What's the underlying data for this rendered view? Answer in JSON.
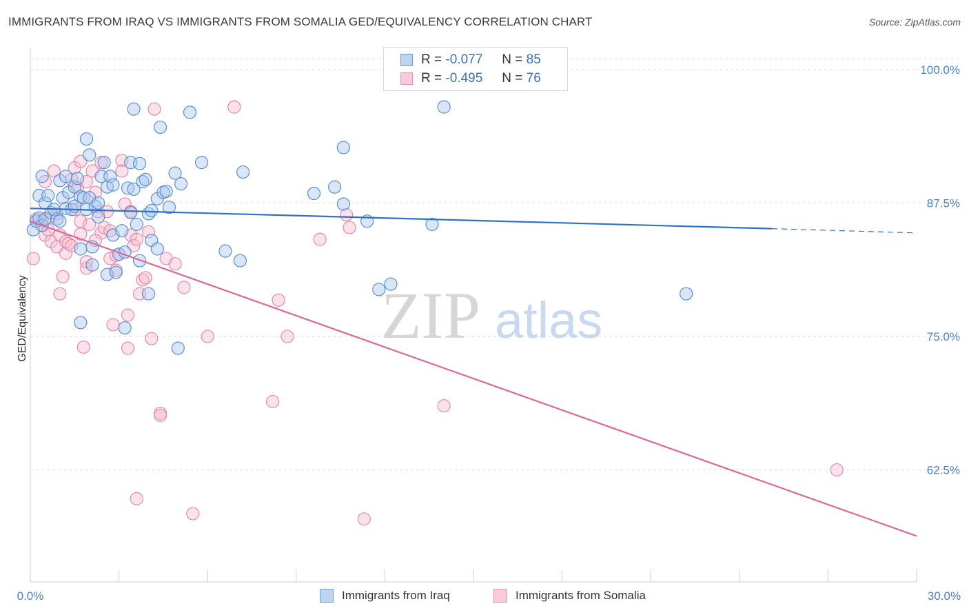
{
  "title": "IMMIGRANTS FROM IRAQ VS IMMIGRANTS FROM SOMALIA GED/EQUIVALENCY CORRELATION CHART",
  "source": "Source: ZipAtlas.com",
  "watermark": {
    "zip": "ZIP",
    "atlas": "atlas"
  },
  "legend": {
    "rows": [
      {
        "r_label": "R =",
        "r_value": "-0.077",
        "n_label": "N =",
        "n_value": "85"
      },
      {
        "r_label": "R =",
        "r_value": "-0.495",
        "n_label": "N =",
        "n_value": "76"
      }
    ]
  },
  "bottom_legend": [
    "Immigrants from Iraq",
    "Immigrants from Somalia"
  ],
  "colors": {
    "iraq_fill": "#a9c8ee",
    "iraq_stroke": "#5b8fd6",
    "iraq_line": "#2e6fcc",
    "somalia_fill": "#f6bcd0",
    "somalia_stroke": "#e98aab",
    "somalia_line": "#e0669a",
    "tick_text": "#4a7fd0",
    "grid": "#dddddd"
  },
  "chart_data": {
    "type": "scatter",
    "title": "IMMIGRANTS FROM IRAQ VS IMMIGRANTS FROM SOMALIA GED/EQUIVALENCY CORRELATION CHART",
    "xlabel": "",
    "ylabel": "GED/Equivalency",
    "xlim": [
      0,
      30
    ],
    "ylim": [
      52,
      102
    ],
    "x_tick_labels": [
      "0.0%",
      "30.0%"
    ],
    "y_ticks": [
      62.5,
      75.0,
      87.5,
      100.0
    ],
    "y_tick_labels": [
      "62.5%",
      "75.0%",
      "87.5%",
      "100.0%"
    ],
    "grid": true,
    "legend_position": "top-center",
    "series": [
      {
        "name": "Immigrants from Iraq",
        "r": -0.077,
        "n": 85,
        "trend": {
          "x0": 0,
          "y0": 87.0,
          "x1": 25.1,
          "y1": 85.1,
          "dash_to_x": 30,
          "dash_to_y": 84.7
        },
        "points": [
          [
            0.1,
            85.0
          ],
          [
            0.2,
            85.8
          ],
          [
            0.3,
            88.2
          ],
          [
            0.3,
            86.1
          ],
          [
            0.4,
            90.0
          ],
          [
            0.4,
            85.4
          ],
          [
            0.5,
            87.5
          ],
          [
            0.5,
            86.0
          ],
          [
            0.6,
            88.2
          ],
          [
            0.7,
            86.6
          ],
          [
            0.8,
            86.9
          ],
          [
            0.9,
            86.0
          ],
          [
            1.0,
            89.6
          ],
          [
            1.0,
            85.8
          ],
          [
            1.1,
            88.0
          ],
          [
            1.2,
            87.0
          ],
          [
            1.2,
            90.0
          ],
          [
            1.3,
            88.5
          ],
          [
            1.4,
            86.9
          ],
          [
            1.5,
            89.0
          ],
          [
            1.5,
            87.2
          ],
          [
            1.6,
            89.8
          ],
          [
            1.7,
            88.1
          ],
          [
            1.7,
            83.2
          ],
          [
            1.8,
            88.0
          ],
          [
            1.9,
            86.9
          ],
          [
            1.9,
            93.5
          ],
          [
            2.0,
            92.0
          ],
          [
            2.0,
            88.0
          ],
          [
            2.1,
            81.7
          ],
          [
            2.1,
            83.4
          ],
          [
            2.2,
            87.2
          ],
          [
            2.3,
            87.5
          ],
          [
            2.3,
            86.2
          ],
          [
            2.4,
            90.0
          ],
          [
            2.5,
            91.3
          ],
          [
            2.6,
            80.8
          ],
          [
            2.6,
            89.0
          ],
          [
            2.7,
            90.0
          ],
          [
            2.8,
            84.5
          ],
          [
            2.8,
            89.2
          ],
          [
            2.9,
            81.0
          ],
          [
            3.0,
            82.7
          ],
          [
            3.1,
            84.9
          ],
          [
            3.2,
            75.8
          ],
          [
            3.2,
            82.9
          ],
          [
            3.3,
            88.9
          ],
          [
            3.4,
            86.6
          ],
          [
            3.4,
            91.3
          ],
          [
            3.5,
            88.8
          ],
          [
            3.5,
            96.3
          ],
          [
            3.6,
            85.5
          ],
          [
            3.7,
            82.1
          ],
          [
            3.7,
            91.2
          ],
          [
            3.8,
            89.5
          ],
          [
            3.9,
            89.7
          ],
          [
            4.0,
            79.0
          ],
          [
            4.0,
            86.5
          ],
          [
            4.1,
            86.8
          ],
          [
            4.1,
            84.0
          ],
          [
            4.3,
            87.9
          ],
          [
            4.3,
            83.2
          ],
          [
            4.4,
            94.6
          ],
          [
            4.5,
            88.5
          ],
          [
            4.6,
            88.6
          ],
          [
            4.7,
            87.1
          ],
          [
            4.9,
            90.3
          ],
          [
            5.0,
            73.9
          ],
          [
            5.1,
            89.3
          ],
          [
            5.4,
            96.0
          ],
          [
            5.8,
            91.3
          ],
          [
            6.6,
            83.0
          ],
          [
            7.1,
            82.1
          ],
          [
            7.2,
            90.4
          ],
          [
            9.6,
            88.4
          ],
          [
            10.3,
            89.0
          ],
          [
            10.6,
            92.7
          ],
          [
            10.6,
            87.4
          ],
          [
            11.4,
            85.8
          ],
          [
            11.8,
            79.4
          ],
          [
            12.2,
            79.9
          ],
          [
            13.6,
            85.5
          ],
          [
            14.0,
            96.5
          ],
          [
            22.2,
            79.0
          ],
          [
            1.7,
            76.3
          ]
        ]
      },
      {
        "name": "Immigrants from Somalia",
        "r": -0.495,
        "n": 76,
        "trend": {
          "x0": 0,
          "y0": 85.8,
          "x1": 30,
          "y1": 56.3
        },
        "points": [
          [
            0.1,
            82.3
          ],
          [
            0.2,
            86.0
          ],
          [
            0.4,
            85.8
          ],
          [
            0.5,
            84.5
          ],
          [
            0.5,
            89.5
          ],
          [
            0.6,
            86.1
          ],
          [
            0.7,
            83.9
          ],
          [
            0.8,
            90.5
          ],
          [
            0.9,
            83.4
          ],
          [
            1.0,
            84.5
          ],
          [
            1.0,
            79.0
          ],
          [
            1.1,
            80.6
          ],
          [
            1.2,
            83.9
          ],
          [
            1.2,
            82.8
          ],
          [
            1.3,
            83.7
          ],
          [
            1.4,
            89.7
          ],
          [
            1.5,
            86.9
          ],
          [
            1.5,
            90.8
          ],
          [
            1.6,
            88.9
          ],
          [
            1.7,
            84.6
          ],
          [
            1.7,
            91.4
          ],
          [
            1.7,
            85.8
          ],
          [
            1.8,
            74.0
          ],
          [
            1.9,
            89.5
          ],
          [
            1.9,
            81.4
          ],
          [
            2.0,
            85.5
          ],
          [
            2.1,
            90.5
          ],
          [
            2.2,
            88.5
          ],
          [
            2.3,
            86.7
          ],
          [
            2.4,
            91.3
          ],
          [
            2.4,
            84.7
          ],
          [
            2.5,
            85.2
          ],
          [
            2.6,
            86.7
          ],
          [
            2.7,
            84.9
          ],
          [
            2.7,
            82.3
          ],
          [
            2.8,
            76.1
          ],
          [
            2.9,
            82.6
          ],
          [
            2.9,
            81.2
          ],
          [
            3.1,
            91.5
          ],
          [
            3.1,
            90.5
          ],
          [
            3.2,
            87.4
          ],
          [
            3.3,
            73.9
          ],
          [
            3.3,
            77.0
          ],
          [
            3.4,
            86.7
          ],
          [
            3.4,
            84.5
          ],
          [
            3.5,
            83.5
          ],
          [
            3.6,
            59.8
          ],
          [
            3.6,
            84.1
          ],
          [
            3.8,
            80.3
          ],
          [
            3.9,
            80.5
          ],
          [
            4.0,
            84.8
          ],
          [
            4.1,
            74.8
          ],
          [
            4.2,
            96.3
          ],
          [
            4.4,
            67.8
          ],
          [
            4.4,
            67.6
          ],
          [
            4.6,
            82.3
          ],
          [
            4.9,
            81.8
          ],
          [
            5.2,
            79.6
          ],
          [
            5.5,
            58.4
          ],
          [
            6.0,
            75.0
          ],
          [
            6.9,
            96.5
          ],
          [
            8.2,
            68.9
          ],
          [
            8.4,
            78.4
          ],
          [
            8.7,
            75.0
          ],
          [
            9.8,
            84.1
          ],
          [
            10.7,
            86.4
          ],
          [
            10.8,
            85.2
          ],
          [
            11.3,
            57.9
          ],
          [
            14.0,
            68.5
          ],
          [
            27.3,
            62.5
          ],
          [
            1.4,
            83.5
          ],
          [
            2.2,
            84.0
          ],
          [
            0.9,
            86.5
          ],
          [
            1.9,
            82.0
          ],
          [
            0.6,
            85.0
          ],
          [
            3.7,
            79.0
          ]
        ]
      }
    ]
  }
}
